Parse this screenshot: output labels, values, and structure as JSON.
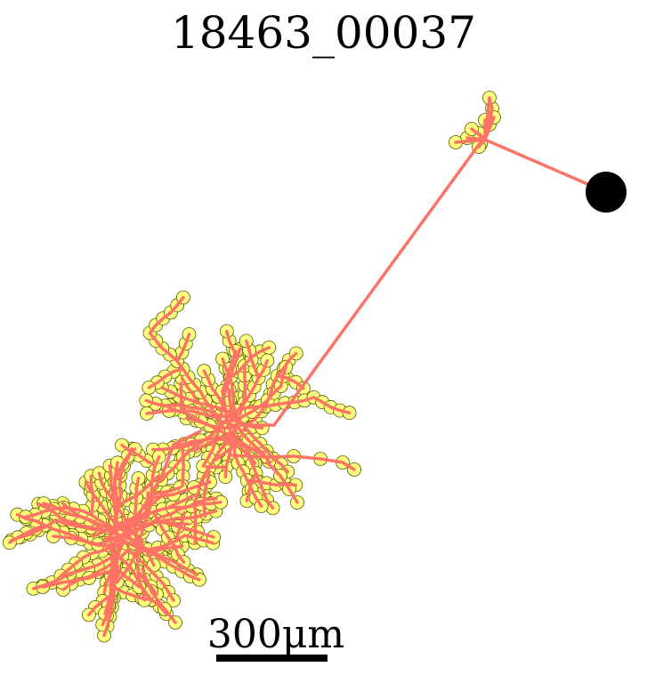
{
  "title": "18463_00037",
  "scale_bar": {
    "label": "300μm"
  },
  "colors": {
    "neurite": "#ff7366",
    "node_fill": "#ffff80",
    "node_stroke": "#5a5a00",
    "soma": "#000000",
    "background": "#ffffff"
  }
}
